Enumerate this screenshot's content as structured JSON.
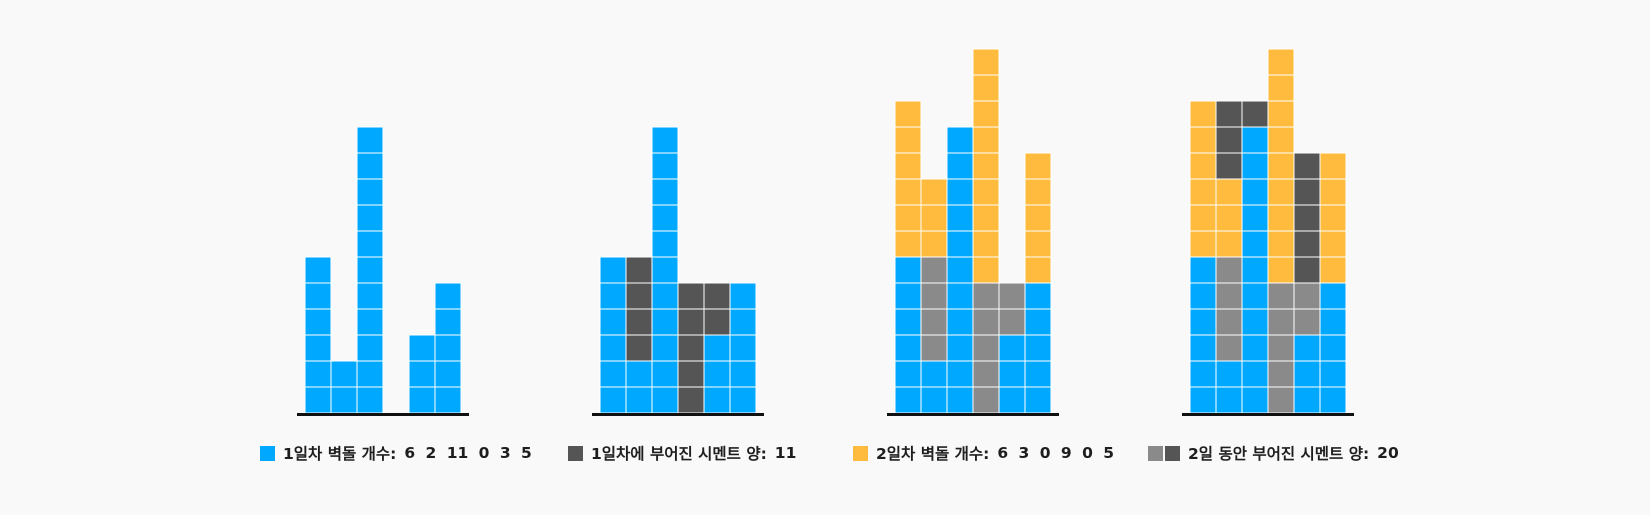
{
  "colors": {
    "day1_brick": "#00a8ff",
    "day1_cement": "#555555",
    "day2_brick": "#ffbb3d",
    "old_cement": "#8a8a8a",
    "cell_border": "#ffffff",
    "baseline": "#111111"
  },
  "legends": [
    {
      "label": "1일차 벽돌 개수:",
      "value": "6  2  11  0  3  5",
      "swatches": [
        "#00a8ff"
      ]
    },
    {
      "label": "1일차에 부어진 시멘트 양:",
      "value": "11",
      "swatches": [
        "#555555"
      ]
    },
    {
      "label": "2일차 벽돌 개수:",
      "value": "6  3  0  9  0  5",
      "swatches": [
        "#ffbb3d"
      ]
    },
    {
      "label": "2일 동안 부어진 시멘트 양:",
      "value": "20",
      "swatches": [
        "#8a8a8a",
        "#555555"
      ]
    }
  ],
  "panels": [
    {
      "name": "day1-bricks",
      "columns": [
        [
          [
            "b",
            6
          ]
        ],
        [
          [
            "b",
            2
          ]
        ],
        [
          [
            "b",
            11
          ]
        ],
        [],
        [
          [
            "b",
            3
          ]
        ],
        [
          [
            "b",
            5
          ]
        ]
      ]
    },
    {
      "name": "day1-cement",
      "columns": [
        [
          [
            "b",
            6
          ]
        ],
        [
          [
            "b",
            2
          ],
          [
            "c",
            4
          ]
        ],
        [
          [
            "b",
            11
          ]
        ],
        [
          [
            "c",
            5
          ]
        ],
        [
          [
            "b",
            3
          ],
          [
            "c",
            2
          ]
        ],
        [
          [
            "b",
            5
          ]
        ]
      ]
    },
    {
      "name": "day2-bricks",
      "columns": [
        [
          [
            "b",
            6
          ],
          [
            "y",
            6
          ]
        ],
        [
          [
            "b",
            2
          ],
          [
            "g",
            4
          ],
          [
            "y",
            3
          ]
        ],
        [
          [
            "b",
            11
          ]
        ],
        [
          [
            "g",
            5
          ],
          [
            "y",
            9
          ]
        ],
        [
          [
            "b",
            3
          ],
          [
            "g",
            2
          ]
        ],
        [
          [
            "b",
            5
          ],
          [
            "y",
            5
          ]
        ]
      ]
    },
    {
      "name": "day2-cement",
      "columns": [
        [
          [
            "b",
            6
          ],
          [
            "y",
            6
          ]
        ],
        [
          [
            "b",
            2
          ],
          [
            "g",
            4
          ],
          [
            "y",
            3
          ],
          [
            "c",
            3
          ]
        ],
        [
          [
            "b",
            11
          ],
          [
            "c",
            1
          ]
        ],
        [
          [
            "g",
            5
          ],
          [
            "y",
            9
          ]
        ],
        [
          [
            "b",
            3
          ],
          [
            "g",
            2
          ],
          [
            "c",
            5
          ]
        ],
        [
          [
            "b",
            5
          ],
          [
            "y",
            5
          ]
        ]
      ]
    }
  ]
}
